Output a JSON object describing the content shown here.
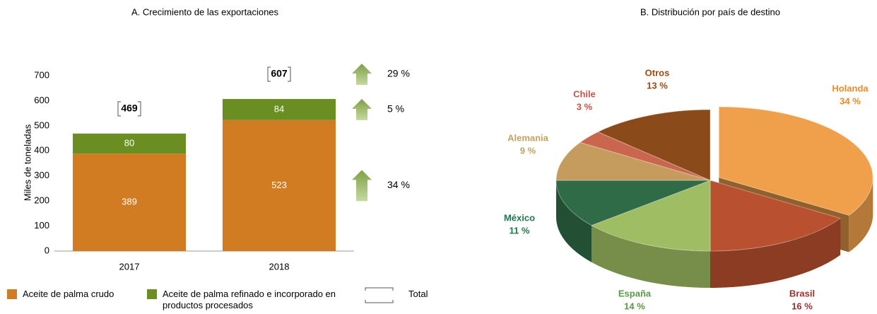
{
  "chart_data": [
    {
      "type": "bar",
      "stacked": true,
      "title": "A. Crecimiento de las exportaciones",
      "y_label": "Miles de toneladas",
      "categories": [
        "2017",
        "2018"
      ],
      "series": [
        {
          "name": "Aceite de palma crudo",
          "color": "#d17b22",
          "values": [
            389,
            523
          ]
        },
        {
          "name": "Aceite de palma refinado e incorporado en productos procesados",
          "color": "#6b8e23",
          "values": [
            80,
            84
          ]
        }
      ],
      "totals": {
        "name": "Total",
        "values": [
          469,
          607
        ]
      },
      "growth": {
        "values": [
          34,
          5,
          29
        ],
        "value_labels": [
          "34 %",
          "5 %",
          "29 %"
        ],
        "color": "#7f9f45"
      },
      "ylim": [
        0,
        700
      ],
      "yticks": [
        0,
        100,
        200,
        300,
        400,
        500,
        600,
        700
      ],
      "legend": "bottom"
    },
    {
      "type": "pie",
      "style": "3d",
      "title": "B. Distribución por país de destino",
      "categories": [
        "Holanda",
        "Brasil",
        "España",
        "México",
        "Alemania",
        "Chile",
        "Otros"
      ],
      "values": [
        34,
        16,
        14,
        11,
        9,
        3,
        13
      ],
      "value_labels": [
        "34 %",
        "16 %",
        "14 %",
        "11 %",
        "9 %",
        "3 %",
        "13 %"
      ],
      "colors": [
        "#f0a04b",
        "#b9502f",
        "#9fbd62",
        "#2f6b47",
        "#c69c5e",
        "#c9664d",
        "#8b4a1a"
      ],
      "label_colors": [
        "#ea8a2a",
        "#9c3030",
        "#5a9a45",
        "#1e7a4a",
        "#c8a060",
        "#c8504a",
        "#9a4a12"
      ],
      "exploded": [
        0
      ]
    }
  ]
}
